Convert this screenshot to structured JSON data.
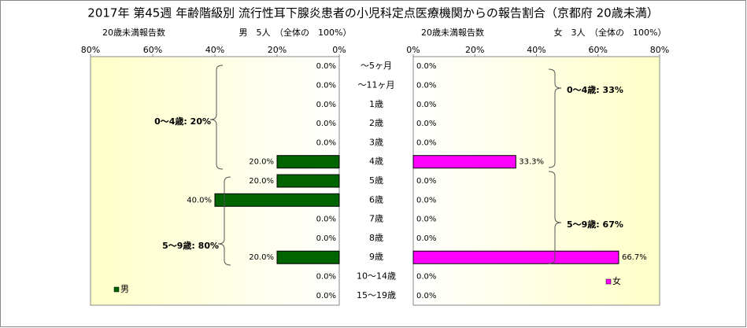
{
  "chart_data": {
    "type": "butterfly",
    "title": "2017年 第45週 年齢階級別 流行性耳下腺炎患者の小児科定点医療機関からの報告割合（京都府 20歳未満）",
    "categories": [
      "～5ヶ月",
      "～11ヶ月",
      "1歳",
      "2歳",
      "3歳",
      "4歳",
      "5歳",
      "6歳",
      "7歳",
      "8歳",
      "9歳",
      "10～14歳",
      "15～19歳"
    ],
    "left": {
      "header": "20歳未満報告数",
      "subheader": "男　5人　（全体の　100%）",
      "name": "男",
      "color": "#006400",
      "values": [
        0,
        0,
        0,
        0,
        0,
        20,
        20,
        40,
        0,
        0,
        20,
        0,
        0
      ],
      "value_labels": [
        "0.0%",
        "0.0%",
        "0.0%",
        "0.0%",
        "0.0%",
        "20.0%",
        "20.0%",
        "40.0%",
        "0.0%",
        "0.0%",
        "20.0%",
        "0.0%",
        "0.0%"
      ],
      "xlim": [
        0,
        80
      ],
      "xticks": [
        {
          "value": 0,
          "label": "0%"
        },
        {
          "value": 20,
          "label": "20%"
        },
        {
          "value": 40,
          "label": "40%"
        },
        {
          "value": 60,
          "label": "60%"
        },
        {
          "value": 80,
          "label": "80%"
        }
      ],
      "annotations": [
        "0～4歳: 20%",
        "5～9歳: 80%"
      ]
    },
    "right": {
      "header": "20歳未満報告数",
      "subheader": "女　3人　（全体の　100%）",
      "name": "女",
      "color": "#ff00ff",
      "values": [
        0,
        0,
        0,
        0,
        0,
        33.3,
        0,
        0,
        0,
        0,
        66.7,
        0,
        0
      ],
      "value_labels": [
        "0.0%",
        "0.0%",
        "0.0%",
        "0.0%",
        "0.0%",
        "33.3%",
        "0.0%",
        "0.0%",
        "0.0%",
        "0.0%",
        "66.7%",
        "0.0%",
        "0.0%"
      ],
      "xlim": [
        0,
        80
      ],
      "xticks": [
        {
          "value": 0,
          "label": "0%"
        },
        {
          "value": 20,
          "label": "20%"
        },
        {
          "value": 40,
          "label": "40%"
        },
        {
          "value": 60,
          "label": "60%"
        },
        {
          "value": 80,
          "label": "80%"
        }
      ],
      "annotations": [
        "0～4歳: 33%",
        "5～9歳: 67%"
      ]
    }
  }
}
